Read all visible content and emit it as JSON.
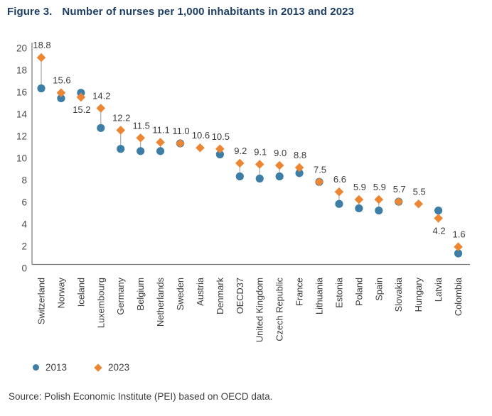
{
  "title": {
    "prefix": "Figure 3.",
    "text": "Number of nurses per 1,000 inhabitants in 2013 and 2023"
  },
  "legend": {
    "items": [
      {
        "label": "2013",
        "marker": "circle-icon"
      },
      {
        "label": "2023",
        "marker": "diamond-icon"
      }
    ]
  },
  "source": "Source: Polish Economic Institute (PEI) based on OECD data.",
  "colors": {
    "series_2013": "#3d7ea6",
    "series_2023": "#ed8633",
    "title_navy": "#1d3e63",
    "axis_line": "#777777",
    "connector": "#a8a8a8",
    "value_label": "#3b3b3b",
    "tick_label": "#4d4d4d",
    "category_label": "#3c3c3c"
  },
  "chart_data": {
    "type": "scatter",
    "title": "Number of nurses per 1,000 inhabitants in 2013 and 2023",
    "categories": [
      "Switzerland",
      "Norway",
      "Iceland",
      "Luxembourg",
      "Germany",
      "Belgium",
      "Netherlands",
      "Sweden",
      "Austria",
      "Denmark",
      "OECD37",
      "United Kingdom",
      "Czech Republic",
      "France",
      "Lithuania",
      "Estonia",
      "Poland",
      "Spain",
      "Slovakia",
      "Hungary",
      "Latvia",
      "Colombia"
    ],
    "series": [
      {
        "name": "2013",
        "marker": "circle",
        "values": [
          16.0,
          15.1,
          15.6,
          12.4,
          10.5,
          10.3,
          10.3,
          11.0,
          null,
          10.0,
          8.0,
          7.8,
          8.0,
          8.3,
          7.5,
          5.5,
          5.1,
          4.9,
          5.7,
          null,
          4.9,
          1.0
        ]
      },
      {
        "name": "2023",
        "marker": "diamond",
        "values": [
          18.8,
          15.6,
          15.2,
          14.2,
          12.2,
          11.5,
          11.1,
          11.0,
          10.6,
          10.5,
          9.2,
          9.1,
          9.0,
          8.8,
          7.5,
          6.6,
          5.9,
          5.9,
          5.7,
          5.5,
          4.2,
          1.6
        ]
      }
    ],
    "data_labels": {
      "labeled_series": "2023",
      "values": [
        "18.8",
        "15.6",
        "15.2",
        "14.2",
        "12.2",
        "11.5",
        "11.1",
        "11.0",
        "10.6",
        "10.5",
        "9.2",
        "9.1",
        "9.0",
        "8.8",
        "7.5",
        "6.6",
        "5.9",
        "5.9",
        "5.7",
        "5.5",
        "4.2",
        "1.6"
      ]
    },
    "xlabel": "",
    "ylabel": "",
    "ylim": [
      0,
      20
    ],
    "yticks": [
      0,
      2,
      4,
      6,
      8,
      10,
      12,
      14,
      16,
      18,
      20
    ],
    "grid": false,
    "legend_position": "bottom-left"
  }
}
